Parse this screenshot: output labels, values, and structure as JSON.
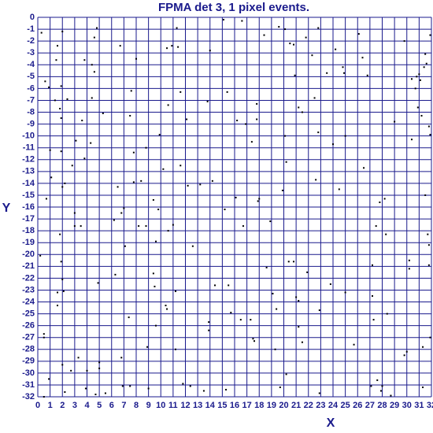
{
  "chart_data": {
    "type": "scatter",
    "title": "FPMA det 3, 1 pixel events.",
    "x_label": "X",
    "y_label": "Y",
    "color": "#000000",
    "grid": true,
    "grid_color": "#1a1a8c",
    "xlim": [
      0,
      32
    ],
    "ylim": [
      -32,
      0
    ],
    "xticks": [
      0,
      1,
      2,
      3,
      4,
      5,
      6,
      7,
      8,
      9,
      10,
      11,
      12,
      13,
      14,
      15,
      16,
      17,
      18,
      19,
      20,
      21,
      22,
      23,
      24,
      25,
      26,
      27,
      28,
      29,
      30,
      31,
      32
    ],
    "yticks": [
      0,
      -1,
      -2,
      -3,
      -4,
      -5,
      -6,
      -7,
      -8,
      -9,
      -10,
      -11,
      -12,
      -13,
      -14,
      -15,
      -16,
      -17,
      -18,
      -19,
      -20,
      -21,
      -22,
      -23,
      -24,
      -25,
      -26,
      -27,
      -28,
      -29,
      -30,
      -31,
      -32
    ],
    "x": [
      0.3,
      0.6,
      0.9,
      1.0,
      1.1,
      1.4,
      1.5,
      1.6,
      1.8,
      1.9,
      1.9,
      2.0,
      1.9,
      2.0,
      1.8,
      1.9,
      2.0,
      2.1,
      1.6,
      2.2,
      1.6,
      0.5,
      0.5,
      0.9,
      0.5,
      0.2,
      0.7,
      2.0,
      2.2,
      2.4,
      2.7,
      2.8,
      3.0,
      3.0,
      3.1,
      3.3,
      3.5,
      3.6,
      3.8,
      3.8,
      3.9,
      4.0,
      4.3,
      4.4,
      4.4,
      4.6,
      4.6,
      4.8,
      4.9,
      5.0,
      5.0,
      5.3,
      5.5,
      4.7,
      6.2,
      6.3,
      6.5,
      6.7,
      6.8,
      6.8,
      6.9,
      7.0,
      7.1,
      7.4,
      7.5,
      7.5,
      7.6,
      7.8,
      7.8,
      8.0,
      8.2,
      8.4,
      8.8,
      8.8,
      8.9,
      9.0,
      9.4,
      9.4,
      9.5,
      9.6,
      9.6,
      9.8,
      9.9,
      10.2,
      10.5,
      10.6,
      10.4,
      10.5,
      10.6,
      10.9,
      11.0,
      11.2,
      11.2,
      11.3,
      11.4,
      11.6,
      11.6,
      11.8,
      12.1,
      12.2,
      12.4,
      12.6,
      13.2,
      13.5,
      13.8,
      13.9,
      13.9,
      14.0,
      14.2,
      14.4,
      15.1,
      15.2,
      15.3,
      15.4,
      15.5,
      15.7,
      16.1,
      16.2,
      16.5,
      16.6,
      16.7,
      16.9,
      17.3,
      17.4,
      17.5,
      17.6,
      17.8,
      17.8,
      17.9,
      18.0,
      18.4,
      18.6,
      18.9,
      19.1,
      19.3,
      19.4,
      19.6,
      19.7,
      19.9,
      20.1,
      20.1,
      20.2,
      20.2,
      20.4,
      20.5,
      20.8,
      20.8,
      20.9,
      21.0,
      21.2,
      21.2,
      21.2,
      21.5,
      21.5,
      21.8,
      21.9,
      22.3,
      22.5,
      22.6,
      22.8,
      22.8,
      22.9,
      22.9,
      23.5,
      23.8,
      24.0,
      24.2,
      24.5,
      24.8,
      24.9,
      25.0,
      25.0,
      25.7,
      26.1,
      26.4,
      26.5,
      26.8,
      27.1,
      27.2,
      27.2,
      27.3,
      27.5,
      27.6,
      27.8,
      27.9,
      28.0,
      28.2,
      28.3,
      28.4,
      28.7,
      29.0,
      29.8,
      29.8,
      30.0,
      30.2,
      30.2,
      30.4,
      30.4,
      30.7,
      30.8,
      31.0,
      31.1,
      31.2,
      31.3,
      31.3,
      31.4,
      31.5,
      31.5,
      31.6,
      31.7,
      31.8,
      31.8,
      31.9,
      31.9,
      31.9,
      31.8,
      30.9
    ],
    "values": [
      -1.3,
      -5.4,
      -5.9,
      -11.2,
      -13.5,
      -7.0,
      -3.6,
      -2.4,
      -7.7,
      -5.8,
      -8.5,
      -1.2,
      -11.3,
      -14.3,
      -18.3,
      -20.6,
      -22.1,
      -23.1,
      -23.2,
      -14.0,
      -24.3,
      -26.7,
      -27.0,
      -30.5,
      -32.0,
      -20.1,
      -15.3,
      -29.3,
      -31.6,
      -6.9,
      -29.8,
      -12.5,
      -16.5,
      -17.6,
      -10.4,
      -28.7,
      -17.6,
      -8.7,
      -3.6,
      -11.9,
      -31.3,
      -29.8,
      -10.6,
      -4.0,
      -6.8,
      -1.7,
      -4.6,
      -0.9,
      -22.4,
      -29.6,
      -29.1,
      -8.1,
      -31.7,
      -31.8,
      -17.1,
      -21.7,
      -14.3,
      -2.4,
      -16.5,
      -28.7,
      -31.1,
      -16.1,
      -19.3,
      -25.3,
      -8.3,
      -31.1,
      -6.2,
      -11.4,
      -13.9,
      -3.5,
      -17.6,
      -13.8,
      -11.0,
      -17.6,
      -27.8,
      -31.3,
      -15.4,
      -21.6,
      -22.7,
      -18.9,
      -26.0,
      -16.2,
      -9.9,
      -12.8,
      -2.6,
      -7.4,
      -24.3,
      -24.6,
      -18.0,
      -2.4,
      -17.5,
      -23.1,
      -28.0,
      -0.9,
      -2.5,
      -6.3,
      -12.5,
      -30.9,
      -8.6,
      -14.2,
      -31.1,
      -19.3,
      -14.1,
      -31.5,
      -7.1,
      -25.7,
      -26.4,
      -2.8,
      -13.8,
      -22.6,
      -0.2,
      -16.2,
      -31.4,
      -6.3,
      -22.6,
      -24.9,
      -15.2,
      -8.7,
      -25.5,
      -0.3,
      -17.6,
      -9.0,
      -25.5,
      -10.5,
      -27.1,
      -27.3,
      -7.3,
      -8.6,
      -15.5,
      -15.3,
      -1.5,
      -21.1,
      -17.2,
      -23.3,
      -28.0,
      -24.6,
      -0.8,
      -31.2,
      -14.6,
      -1.0,
      -10.0,
      -12.2,
      -30.1,
      -20.6,
      -2.2,
      -20.6,
      -2.3,
      -4.9,
      -23.6,
      -23.9,
      -7.6,
      -26.1,
      -8.0,
      -27.4,
      -1.7,
      -21.5,
      -3.2,
      -6.8,
      -13.7,
      -0.9,
      -9.7,
      -24.7,
      -31.7,
      -4.7,
      -22.5,
      -10.7,
      -2.7,
      -14.5,
      -4.2,
      -4.7,
      -10.0,
      -23.2,
      -27.6,
      -1.4,
      -3.4,
      -12.7,
      -4.9,
      -31.1,
      -20.9,
      -23.5,
      -25.5,
      -17.6,
      -30.6,
      -15.6,
      -31.5,
      -31.1,
      -15.3,
      -18.3,
      -25.0,
      -31.9,
      -8.8,
      -2.0,
      -28.5,
      -28.2,
      -20.5,
      -21.2,
      -10.3,
      -5.2,
      -6.0,
      -5.0,
      -4.8,
      -5.3,
      -8.3,
      -31.2,
      -27.8,
      -4.2,
      -3.1,
      -15.0,
      -3.9,
      -18.3,
      -20.9,
      -9.2,
      -9.9,
      -1.5,
      -27.0,
      -19.2,
      -7.6
    ]
  }
}
